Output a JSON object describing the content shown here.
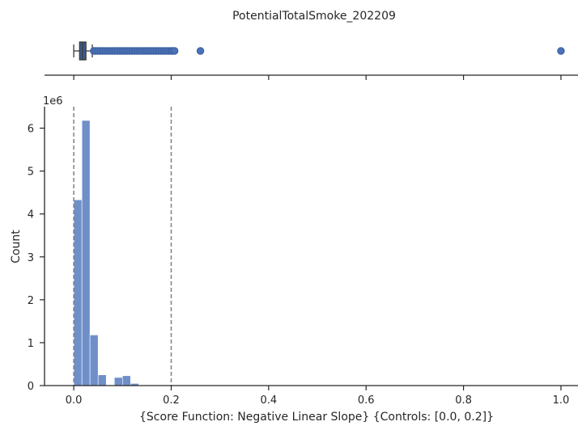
{
  "chart_data": [
    {
      "type": "box",
      "title": "PotentialTotalSmoke_202209",
      "xlim": [
        -0.06,
        1.035
      ],
      "box": {
        "whisker_low": 0.0,
        "q1": 0.012,
        "median": 0.018,
        "q3": 0.025,
        "whisker_high": 0.038
      },
      "outliers": [
        0.041,
        0.045,
        0.05,
        0.055,
        0.06,
        0.065,
        0.07,
        0.075,
        0.08,
        0.085,
        0.09,
        0.095,
        0.1,
        0.105,
        0.11,
        0.115,
        0.12,
        0.125,
        0.13,
        0.135,
        0.14,
        0.145,
        0.15,
        0.155,
        0.16,
        0.165,
        0.17,
        0.175,
        0.18,
        0.185,
        0.19,
        0.195,
        0.2,
        0.203,
        0.207,
        0.26,
        1.0
      ],
      "color": "#4a72b8"
    },
    {
      "type": "bar",
      "bins": [
        {
          "x0": 0.0,
          "x1": 0.0167,
          "count": 4330000
        },
        {
          "x0": 0.0167,
          "x1": 0.0333,
          "count": 6180000
        },
        {
          "x0": 0.0333,
          "x1": 0.05,
          "count": 1180000
        },
        {
          "x0": 0.05,
          "x1": 0.0667,
          "count": 250000
        },
        {
          "x0": 0.0667,
          "x1": 0.0833,
          "count": 0
        },
        {
          "x0": 0.0833,
          "x1": 0.1,
          "count": 190000
        },
        {
          "x0": 0.1,
          "x1": 0.1167,
          "count": 230000
        },
        {
          "x0": 0.1167,
          "x1": 0.1333,
          "count": 50000
        },
        {
          "x0": 0.1333,
          "x1": 0.15,
          "count": 8000
        },
        {
          "x0": 0.15,
          "x1": 0.1667,
          "count": 3000
        },
        {
          "x0": 0.1667,
          "x1": 0.1833,
          "count": 2000
        },
        {
          "x0": 0.1833,
          "x1": 0.2,
          "count": 2000
        },
        {
          "x0": 0.2,
          "x1": 0.2167,
          "count": 1000
        }
      ],
      "xlim": [
        -0.06,
        1.035
      ],
      "ylim": [
        0,
        6500000
      ],
      "xticks": [
        0.0,
        0.2,
        0.4,
        0.6,
        0.8,
        1.0
      ],
      "xtick_labels": [
        "0.0",
        "0.2",
        "0.4",
        "0.6",
        "0.8",
        "1.0"
      ],
      "yticks": [
        0,
        1000000,
        2000000,
        3000000,
        4000000,
        5000000,
        6000000
      ],
      "ytick_labels": [
        "0",
        "1",
        "2",
        "3",
        "4",
        "5",
        "6"
      ],
      "offset_label": "1e6",
      "ylabel": "Count",
      "xlabel": "{Score Function: Negative Linear Slope}  {Controls: [0.0, 0.2]}",
      "control_lines": [
        0.0,
        0.2
      ],
      "bar_color": "#6f8fc9",
      "line_color": "#808080",
      "grid": false
    }
  ]
}
